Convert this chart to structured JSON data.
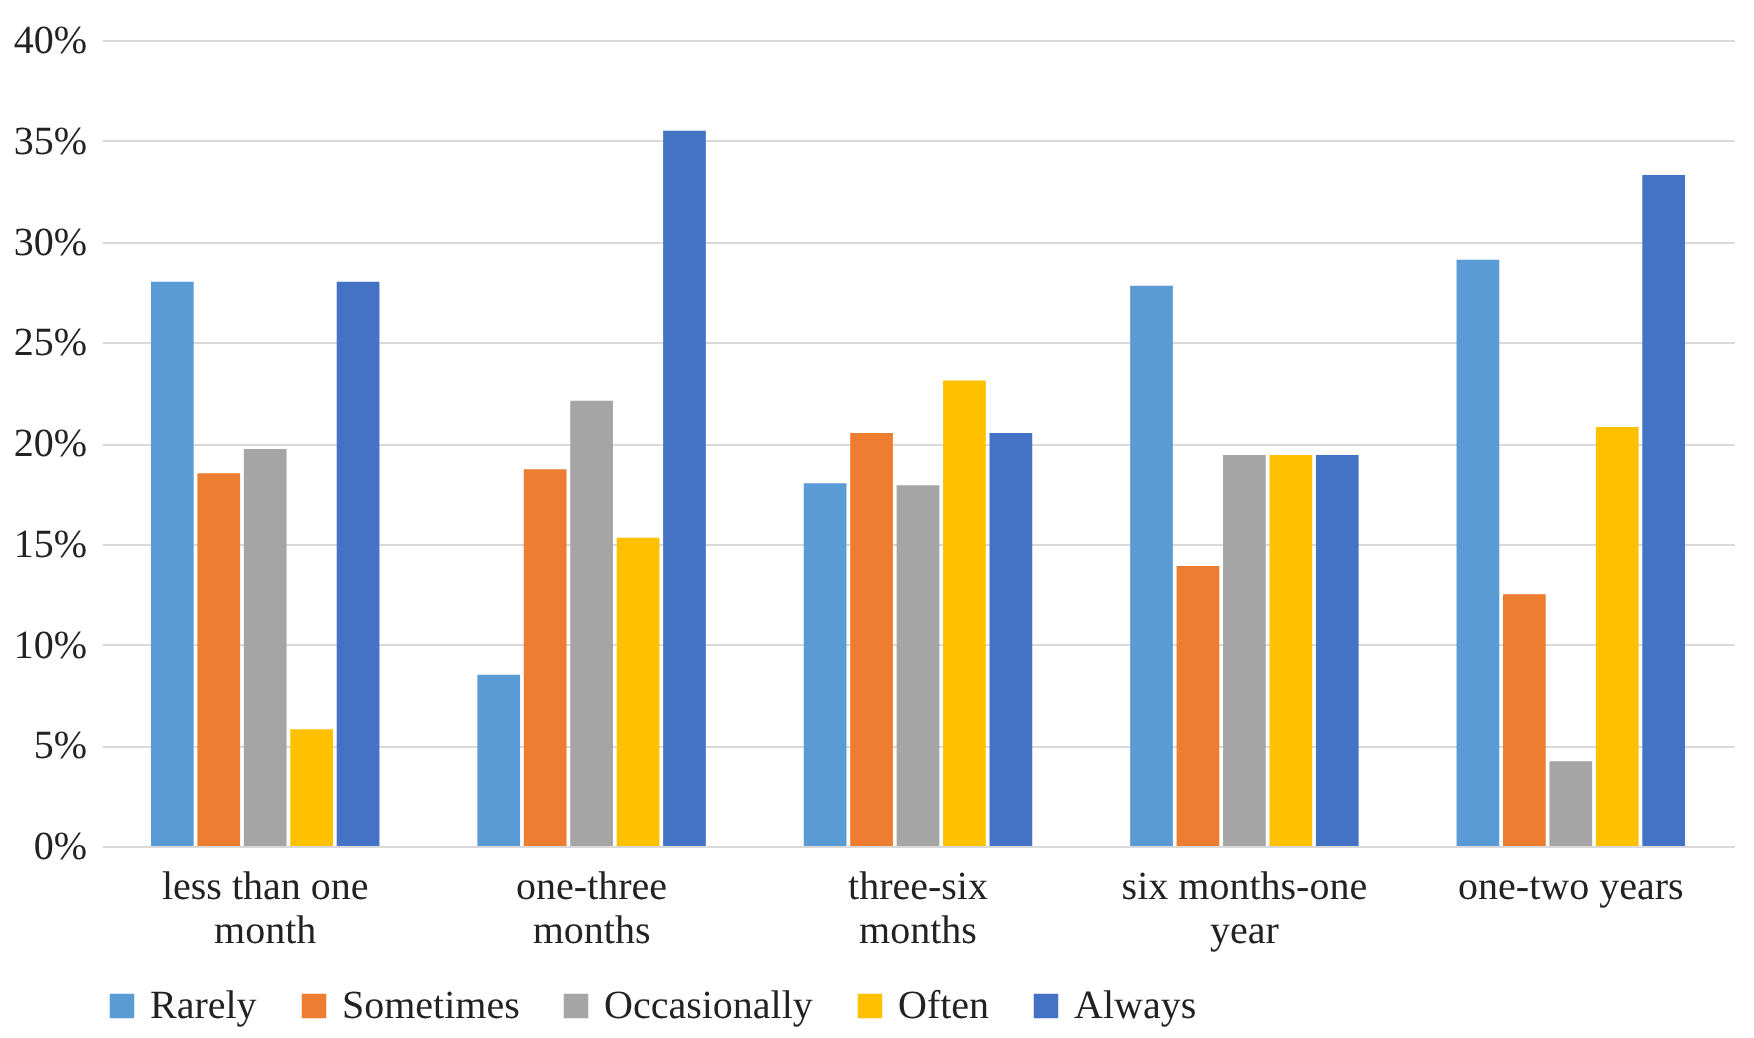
{
  "chart_data": {
    "type": "bar",
    "categories": [
      "less than one month",
      "one-three months",
      "three-six months",
      "six months-one year",
      "one-two years"
    ],
    "series": [
      {
        "name": "Rarely",
        "color": "#5b9bd5",
        "values": [
          28,
          8.5,
          18,
          27.8,
          29.1
        ]
      },
      {
        "name": "Sometimes",
        "color": "#ed7d31",
        "values": [
          18.5,
          18.7,
          20.5,
          13.9,
          12.5
        ]
      },
      {
        "name": "Occasionally",
        "color": "#a5a5a5",
        "values": [
          19.7,
          22.1,
          17.9,
          19.4,
          4.2
        ]
      },
      {
        "name": "Often",
        "color": "#ffc000",
        "values": [
          5.8,
          15.3,
          23.1,
          19.4,
          20.8
        ]
      },
      {
        "name": "Always",
        "color": "#4472c4",
        "values": [
          28,
          35.5,
          20.5,
          19.4,
          33.3
        ]
      }
    ],
    "ylim": [
      0,
      40
    ],
    "yticks": [
      {
        "value": 0,
        "label": "0%"
      },
      {
        "value": 5,
        "label": "5%"
      },
      {
        "value": 10,
        "label": "10%"
      },
      {
        "value": 15,
        "label": "15%"
      },
      {
        "value": 20,
        "label": "20%"
      },
      {
        "value": 25,
        "label": "25%"
      },
      {
        "value": 30,
        "label": "30%"
      },
      {
        "value": 35,
        "label": "35%"
      },
      {
        "value": 40,
        "label": "40%"
      }
    ],
    "grid": "y",
    "legend": "bottom"
  }
}
